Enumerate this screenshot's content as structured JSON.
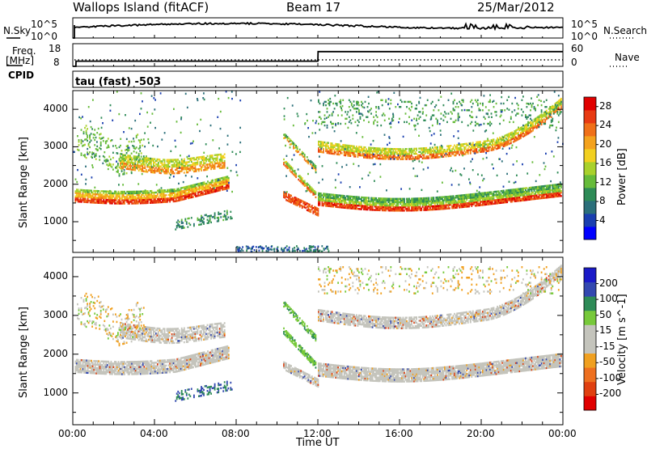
{
  "header": {
    "site": "Wallops Island (fitACF)",
    "beam": "Beam 17",
    "date": "25/Mar/2012"
  },
  "left_labels": {
    "nsky": "N.Sky",
    "nsky_top": "10^5",
    "nsky_bot": "10^0",
    "freq": "Freq.",
    "freq_unit": "[MHz]",
    "freq_top": "18",
    "freq_bot": "8",
    "cpid": "CPID"
  },
  "right_labels": {
    "nsearch": "N.Search",
    "ns_top": "10^5",
    "ns_bot": "10^0",
    "nave": "Nave",
    "nave_top": "60",
    "nave_bot": "0"
  },
  "mode_text": "tau (fast) -503",
  "colors": {
    "power_scale": [
      "#0000ff",
      "#1a3fb0",
      "#2b6f7a",
      "#2e8b57",
      "#66bb3a",
      "#a9d12c",
      "#f2d020",
      "#f4a21d",
      "#f07018",
      "#e83a12",
      "#e00000"
    ],
    "velocity_scale": [
      "#1a1ac8",
      "#3348b0",
      "#2e8b57",
      "#77c93a",
      "#c4c4bc",
      "#c4c4bc",
      "#f0a020",
      "#ee7020",
      "#e04010",
      "#e00000"
    ],
    "axis": "#000000"
  },
  "chart_data": [
    {
      "type": "line",
      "name": "N.Sky / N.Search",
      "ylim": [
        "10^0",
        "10^5"
      ],
      "series": [
        {
          "name": "N.Sky",
          "note_visible": true
        },
        {
          "name": "N.Search"
        }
      ]
    },
    {
      "type": "line",
      "series": [
        {
          "name": "Freq.",
          "x_hours": [
            0.0,
            0.15,
            0.16,
            12.0,
            12.01,
            24.0
          ],
          "values": [
            8,
            8,
            10.3,
            10.3,
            14.5,
            14.5
          ]
        },
        {
          "name": "Nave",
          "x_hours": [
            0.0,
            24.0
          ],
          "values": [
            8,
            8
          ]
        }
      ],
      "ylim_freq": [
        8,
        18
      ],
      "ylim_nave": [
        0,
        60
      ]
    },
    {
      "type": "heatmap",
      "quantity": "Power",
      "ylabel": "Slant Range [km]",
      "yticks": [
        1000,
        2000,
        3000,
        4000
      ],
      "ylim": [
        180,
        4500
      ],
      "colorbar_label": "Power [dB]",
      "colorbar_ticks": [
        4,
        8,
        12,
        16,
        20,
        24,
        28
      ],
      "colorbar_range": [
        0,
        30
      ]
    },
    {
      "type": "heatmap",
      "quantity": "Velocity",
      "ylabel": "Slant Range [km]",
      "xlabel": "Time UT",
      "yticks": [
        1000,
        2000,
        3000,
        4000
      ],
      "xticks": [
        "00:00",
        "04:00",
        "08:00",
        "12:00",
        "16:00",
        "20:00",
        "00:00"
      ],
      "ylim": [
        180,
        4500
      ],
      "colorbar_label": "Velocity [m s^-1]",
      "colorbar_ticks": [
        200,
        100,
        50,
        15,
        -15,
        -50,
        -100,
        -200
      ],
      "colorbar_range": [
        -250,
        250
      ]
    }
  ]
}
